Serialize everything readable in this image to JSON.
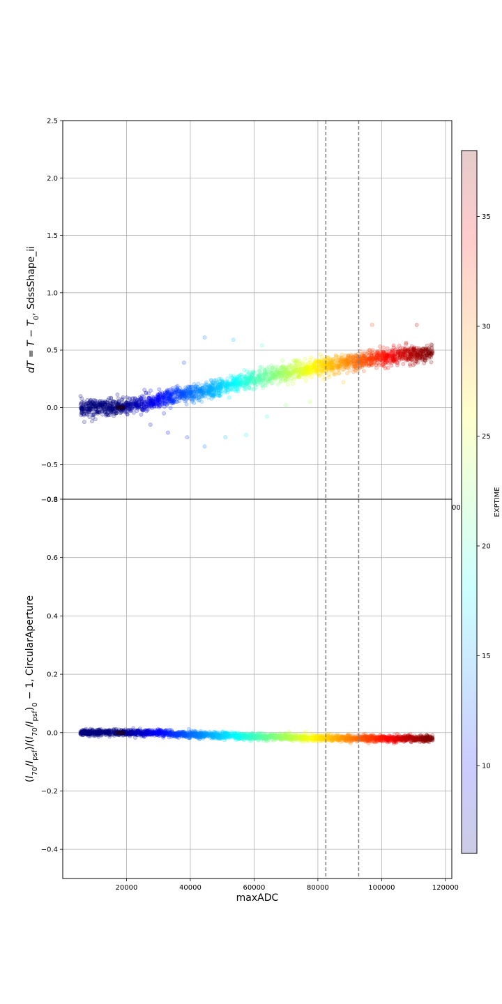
{
  "chart_data": [
    {
      "type": "scatter",
      "panel": "top",
      "ylabel_parts": [
        "d",
        "T",
        " = ",
        "T",
        " − ",
        "T",
        "0",
        ", SdssShape_ii"
      ],
      "xlim": [
        0,
        122000
      ],
      "ylim": [
        -0.8,
        2.5
      ],
      "yticks": [
        -0.5,
        0.0,
        0.5,
        1.0,
        1.5,
        2.0,
        2.5
      ],
      "yticks_labels": [
        "−0.5",
        "0.0",
        "0.5",
        "1.0",
        "1.5",
        "2.0",
        "2.5"
      ],
      "xticks_partial_label": "00",
      "y_bottom_label": "−0.8",
      "grid": true,
      "vlines": [
        82500,
        92800
      ],
      "series_trend": [
        {
          "x": 6000,
          "y": 0.0,
          "exptime": 6
        },
        {
          "x": 18000,
          "y": 0.0,
          "exptime": 6
        },
        {
          "x": 24000,
          "y": 0.03,
          "exptime": 8
        },
        {
          "x": 30000,
          "y": 0.06,
          "exptime": 10
        },
        {
          "x": 36000,
          "y": 0.1,
          "exptime": 12
        },
        {
          "x": 42000,
          "y": 0.13,
          "exptime": 14
        },
        {
          "x": 48000,
          "y": 0.16,
          "exptime": 16
        },
        {
          "x": 54000,
          "y": 0.21,
          "exptime": 18
        },
        {
          "x": 60000,
          "y": 0.25,
          "exptime": 20
        },
        {
          "x": 66000,
          "y": 0.28,
          "exptime": 22
        },
        {
          "x": 72000,
          "y": 0.31,
          "exptime": 24
        },
        {
          "x": 78000,
          "y": 0.35,
          "exptime": 26
        },
        {
          "x": 84000,
          "y": 0.37,
          "exptime": 28
        },
        {
          "x": 90000,
          "y": 0.39,
          "exptime": 30
        },
        {
          "x": 96000,
          "y": 0.42,
          "exptime": 32
        },
        {
          "x": 102000,
          "y": 0.44,
          "exptime": 34
        },
        {
          "x": 108000,
          "y": 0.46,
          "exptime": 36
        },
        {
          "x": 115000,
          "y": 0.47,
          "exptime": 38
        }
      ],
      "outliers": [
        [
          6000,
          0.0
        ],
        [
          8500,
          0.02
        ],
        [
          11000,
          0.02
        ],
        [
          13000,
          0.04
        ],
        [
          14500,
          0.08
        ],
        [
          33000,
          -0.22
        ],
        [
          39000,
          -0.26
        ],
        [
          44500,
          -0.34
        ],
        [
          51000,
          -0.26
        ],
        [
          53500,
          0.59
        ],
        [
          57500,
          -0.24
        ],
        [
          62500,
          0.54
        ],
        [
          64000,
          -0.08
        ],
        [
          44500,
          0.61
        ],
        [
          38000,
          0.39
        ],
        [
          27500,
          -0.15
        ],
        [
          97000,
          0.72
        ],
        [
          111000,
          0.72
        ],
        [
          70000,
          0.02
        ],
        [
          77500,
          0.05
        ],
        [
          88000,
          0.22
        ]
      ]
    },
    {
      "type": "scatter",
      "panel": "bottom",
      "ylabel_parts": [
        "(",
        "I",
        "70",
        "/",
        "I",
        "psf",
        ")/(",
        "I",
        "70",
        "/",
        "I",
        "psf",
        ")",
        "0",
        " − 1, CircularAperture"
      ],
      "xlabel": "maxADC",
      "xlim": [
        0,
        122000
      ],
      "ylim": [
        -0.5,
        0.8
      ],
      "xticks": [
        20000,
        40000,
        60000,
        80000,
        100000,
        120000
      ],
      "xticks_labels": [
        "20000",
        "40000",
        "60000",
        "80000",
        "100000",
        "120000"
      ],
      "yticks": [
        -0.4,
        -0.2,
        0.0,
        0.2,
        0.4,
        0.6,
        0.8
      ],
      "yticks_labels": [
        "−0.4",
        "−0.2",
        "0.0",
        "0.2",
        "0.4",
        "0.6",
        "0.8"
      ],
      "grid": true,
      "vlines": [
        82500,
        92800
      ],
      "series_trend": [
        {
          "x": 6000,
          "y": 0.0,
          "exptime": 6
        },
        {
          "x": 18000,
          "y": 0.0,
          "exptime": 6
        },
        {
          "x": 24000,
          "y": 0.0,
          "exptime": 8
        },
        {
          "x": 30000,
          "y": 0.0,
          "exptime": 10
        },
        {
          "x": 36000,
          "y": -0.005,
          "exptime": 12
        },
        {
          "x": 42000,
          "y": -0.008,
          "exptime": 14
        },
        {
          "x": 48000,
          "y": -0.01,
          "exptime": 16
        },
        {
          "x": 54000,
          "y": -0.012,
          "exptime": 18
        },
        {
          "x": 60000,
          "y": -0.014,
          "exptime": 20
        },
        {
          "x": 66000,
          "y": -0.015,
          "exptime": 22
        },
        {
          "x": 72000,
          "y": -0.016,
          "exptime": 24
        },
        {
          "x": 78000,
          "y": -0.018,
          "exptime": 26
        },
        {
          "x": 84000,
          "y": -0.019,
          "exptime": 28
        },
        {
          "x": 90000,
          "y": -0.02,
          "exptime": 30
        },
        {
          "x": 96000,
          "y": -0.02,
          "exptime": 32
        },
        {
          "x": 102000,
          "y": -0.02,
          "exptime": 34
        },
        {
          "x": 108000,
          "y": -0.02,
          "exptime": 36
        },
        {
          "x": 115000,
          "y": -0.02,
          "exptime": 38
        }
      ],
      "outliers": [
        [
          6000,
          0.0
        ],
        [
          8500,
          0.0
        ],
        [
          11000,
          0.01
        ],
        [
          14000,
          0.0
        ]
      ]
    }
  ],
  "colorbar": {
    "label": "EXPTIME",
    "range": [
      6,
      38
    ],
    "ticks": [
      10,
      15,
      20,
      25,
      30,
      35
    ],
    "ticks_labels": [
      "10",
      "15",
      "20",
      "25",
      "30",
      "35"
    ],
    "colormap": "jet",
    "alpha": 0.2
  },
  "colors": {
    "vline": "#808080",
    "grid": "#b0b0b0",
    "axes": "#000000",
    "colormap_stops": [
      "#00007f",
      "#0000ff",
      "#007fff",
      "#00ffff",
      "#7fff7f",
      "#ffff00",
      "#ff7f00",
      "#ff0000",
      "#7f0000"
    ]
  }
}
